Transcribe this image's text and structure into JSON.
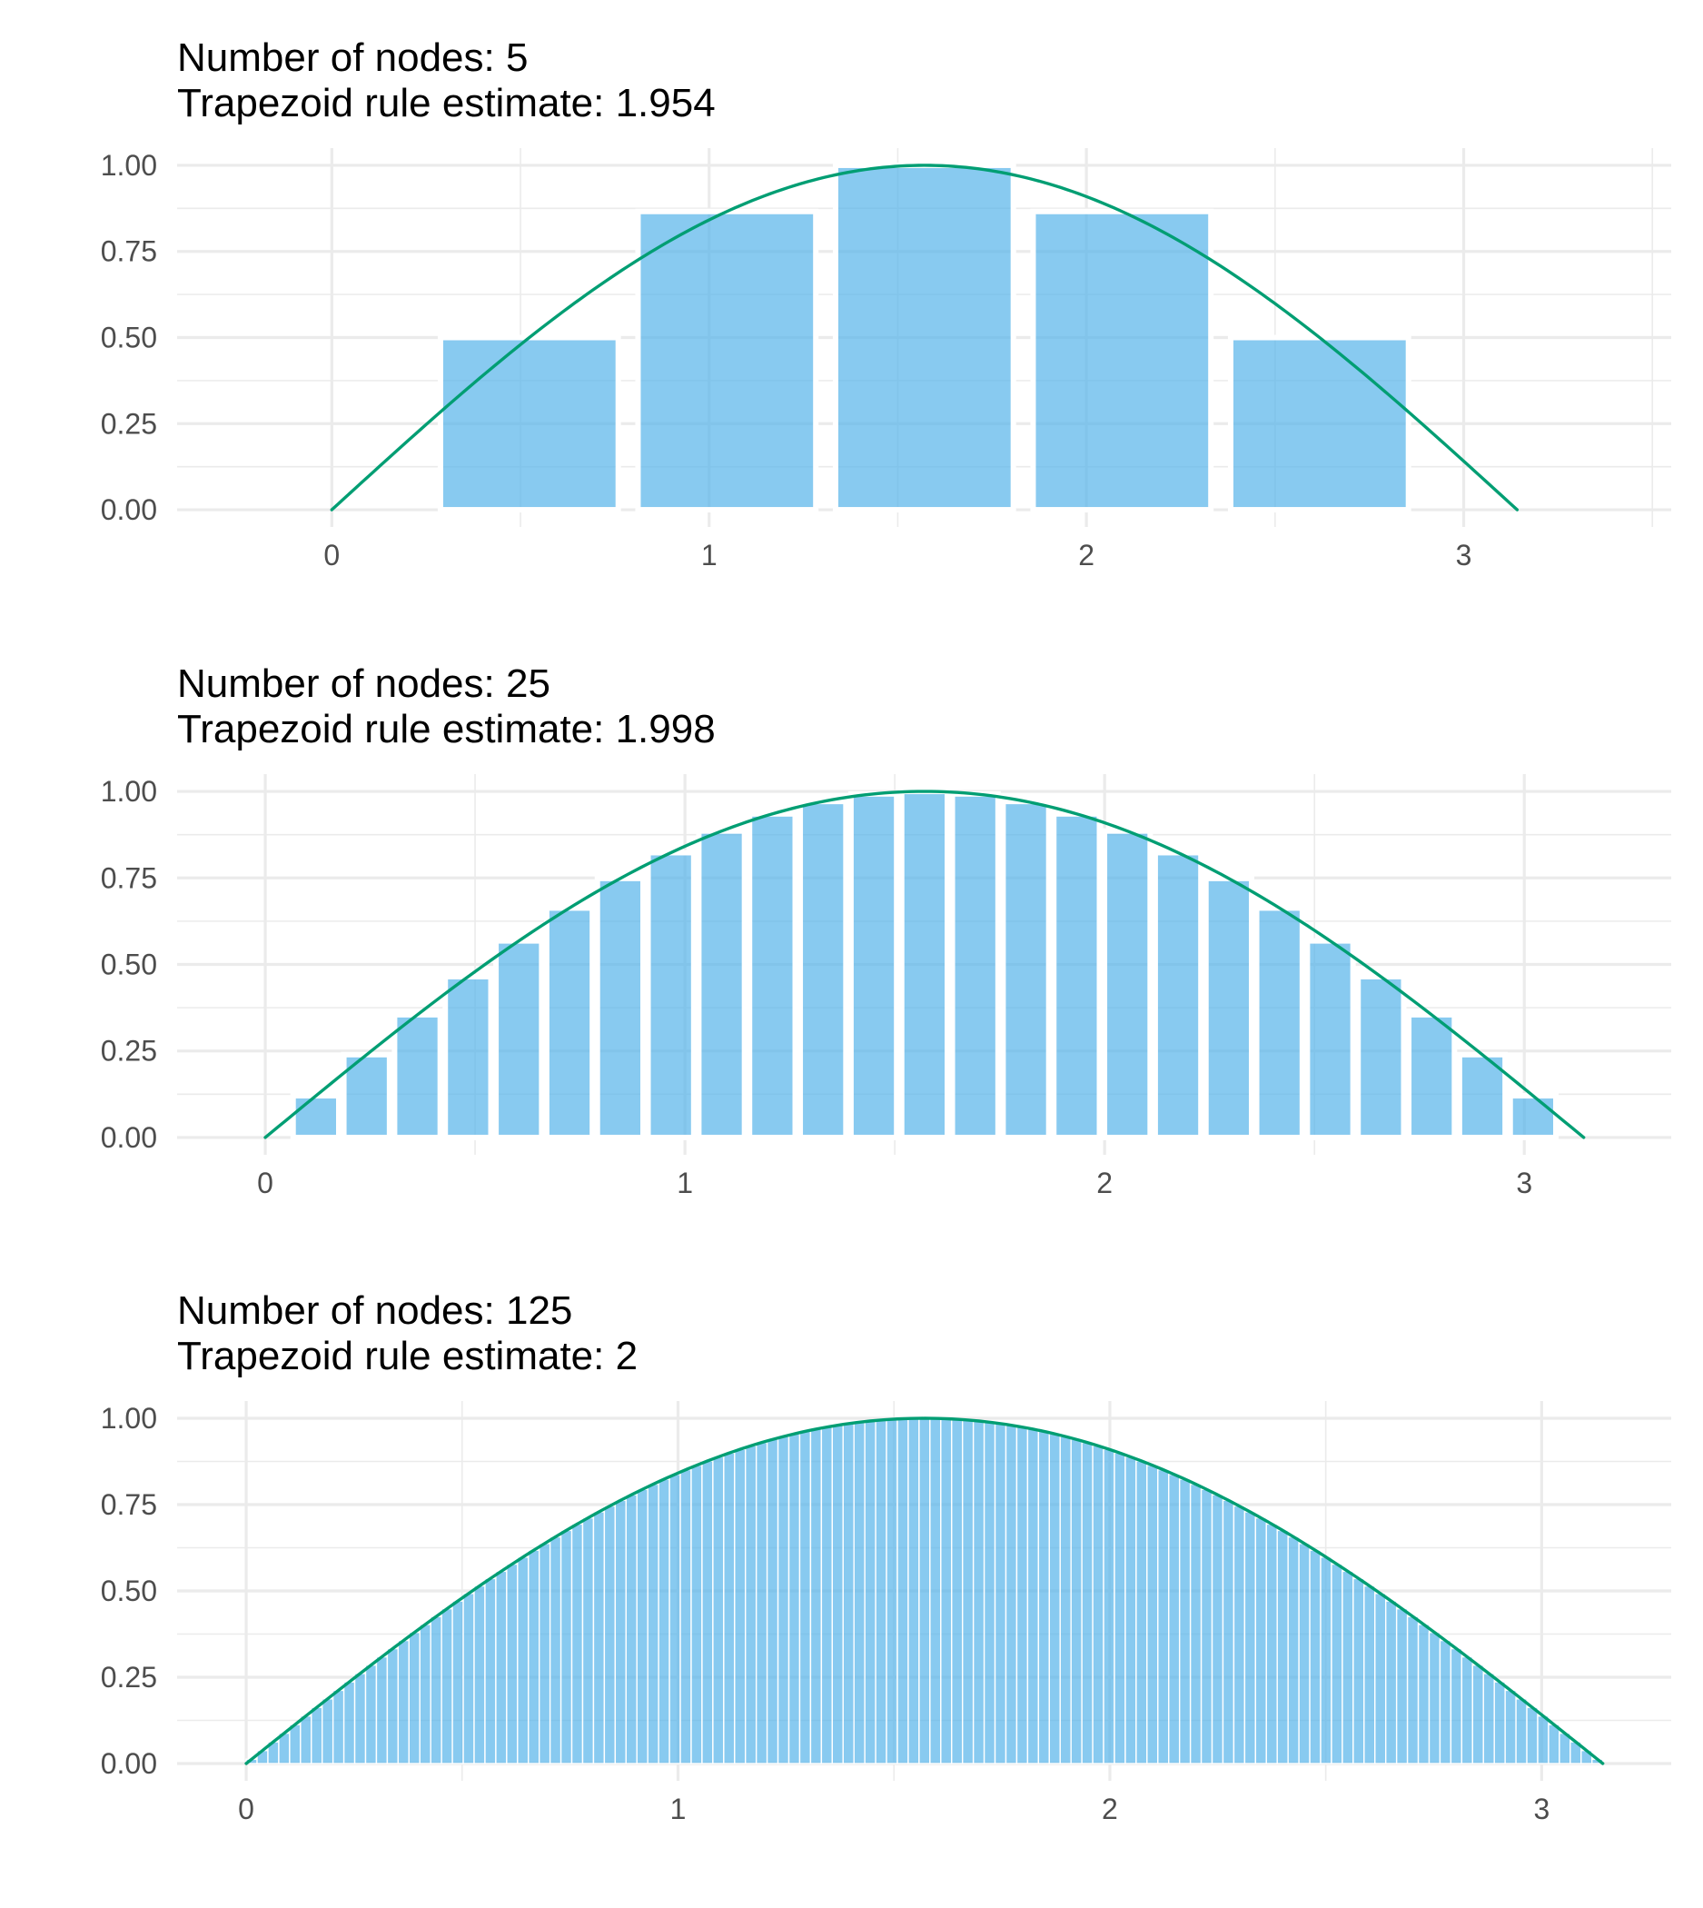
{
  "colors": {
    "bar_fill": "#56b4e9",
    "curve": "#009e73",
    "grid": "#ebebeb",
    "tick_text": "#4d4d4d",
    "title_text": "#000000"
  },
  "chart_data": [
    {
      "type": "bar",
      "title": "Number of nodes: 5",
      "subtitle": "Trapezoid rule estimate: 1.954",
      "nodes": 5,
      "bar_centers": [
        0.5236,
        1.0472,
        1.5708,
        2.0944,
        2.618
      ],
      "bar_width_data": 0.4712,
      "values": [
        0.5,
        0.866,
        1.0,
        0.866,
        0.5
      ],
      "curve": {
        "function": "sin(x)",
        "x_range": [
          0,
          3.1416
        ]
      },
      "x_ticks": [
        0,
        1,
        2,
        3
      ],
      "x_tick_labels": [
        "0",
        "1",
        "2",
        "3"
      ],
      "y_ticks": [
        0,
        0.25,
        0.5,
        0.75,
        1
      ],
      "y_tick_labels": [
        "0.00",
        "0.25",
        "0.50",
        "0.75",
        "1.00"
      ],
      "xlim": [
        -0.41,
        3.55
      ],
      "ylim": [
        -0.05,
        1.05
      ],
      "xlabel": "",
      "ylabel": "",
      "grid": true
    },
    {
      "type": "bar",
      "title": "Number of nodes: 25",
      "subtitle": "Trapezoid rule estimate: 1.998",
      "nodes": 25,
      "bar_centers": [
        0.1208,
        0.2417,
        0.3625,
        0.4833,
        0.6042,
        0.725,
        0.8458,
        0.9666,
        1.0875,
        1.2083,
        1.3291,
        1.45,
        1.5708,
        1.6916,
        1.8125,
        1.9333,
        2.0541,
        2.175,
        2.2958,
        2.4166,
        2.5374,
        2.6583,
        2.7791,
        2.8999,
        3.0208
      ],
      "bar_width_data": 0.1088,
      "values": [
        0.1205,
        0.2393,
        0.3546,
        0.4647,
        0.568,
        0.663,
        0.7485,
        0.823,
        0.8855,
        0.935,
        0.9709,
        0.9927,
        1.0,
        0.9927,
        0.9709,
        0.935,
        0.8855,
        0.823,
        0.7485,
        0.663,
        0.568,
        0.4647,
        0.3546,
        0.2393,
        0.1205
      ],
      "curve": {
        "function": "sin(x)",
        "x_range": [
          0,
          3.1416
        ]
      },
      "x_ticks": [
        0,
        1,
        2,
        3
      ],
      "x_tick_labels": [
        "0",
        "1",
        "2",
        "3"
      ],
      "y_ticks": [
        0,
        0.25,
        0.5,
        0.75,
        1
      ],
      "y_tick_labels": [
        "0.00",
        "0.25",
        "0.50",
        "0.75",
        "1.00"
      ],
      "xlim": [
        -0.21,
        3.35
      ],
      "ylim": [
        -0.05,
        1.05
      ],
      "xlabel": "",
      "ylabel": "",
      "grid": true
    },
    {
      "type": "bar",
      "title": "Number of nodes: 125",
      "subtitle": "Trapezoid rule estimate: 2",
      "nodes": 125,
      "bar_x_range": [
        0,
        3.1416
      ],
      "bar_heights": "sin(bar_center)",
      "curve": {
        "function": "sin(x)",
        "x_range": [
          0,
          3.1416
        ]
      },
      "x_ticks": [
        0,
        1,
        2,
        3
      ],
      "x_tick_labels": [
        "0",
        "1",
        "2",
        "3"
      ],
      "y_ticks": [
        0,
        0.25,
        0.5,
        0.75,
        1
      ],
      "y_tick_labels": [
        "0.00",
        "0.25",
        "0.50",
        "0.75",
        "1.00"
      ],
      "xlim": [
        -0.16,
        3.3
      ],
      "ylim": [
        -0.05,
        1.05
      ],
      "xlabel": "",
      "ylabel": "",
      "grid": true
    }
  ]
}
